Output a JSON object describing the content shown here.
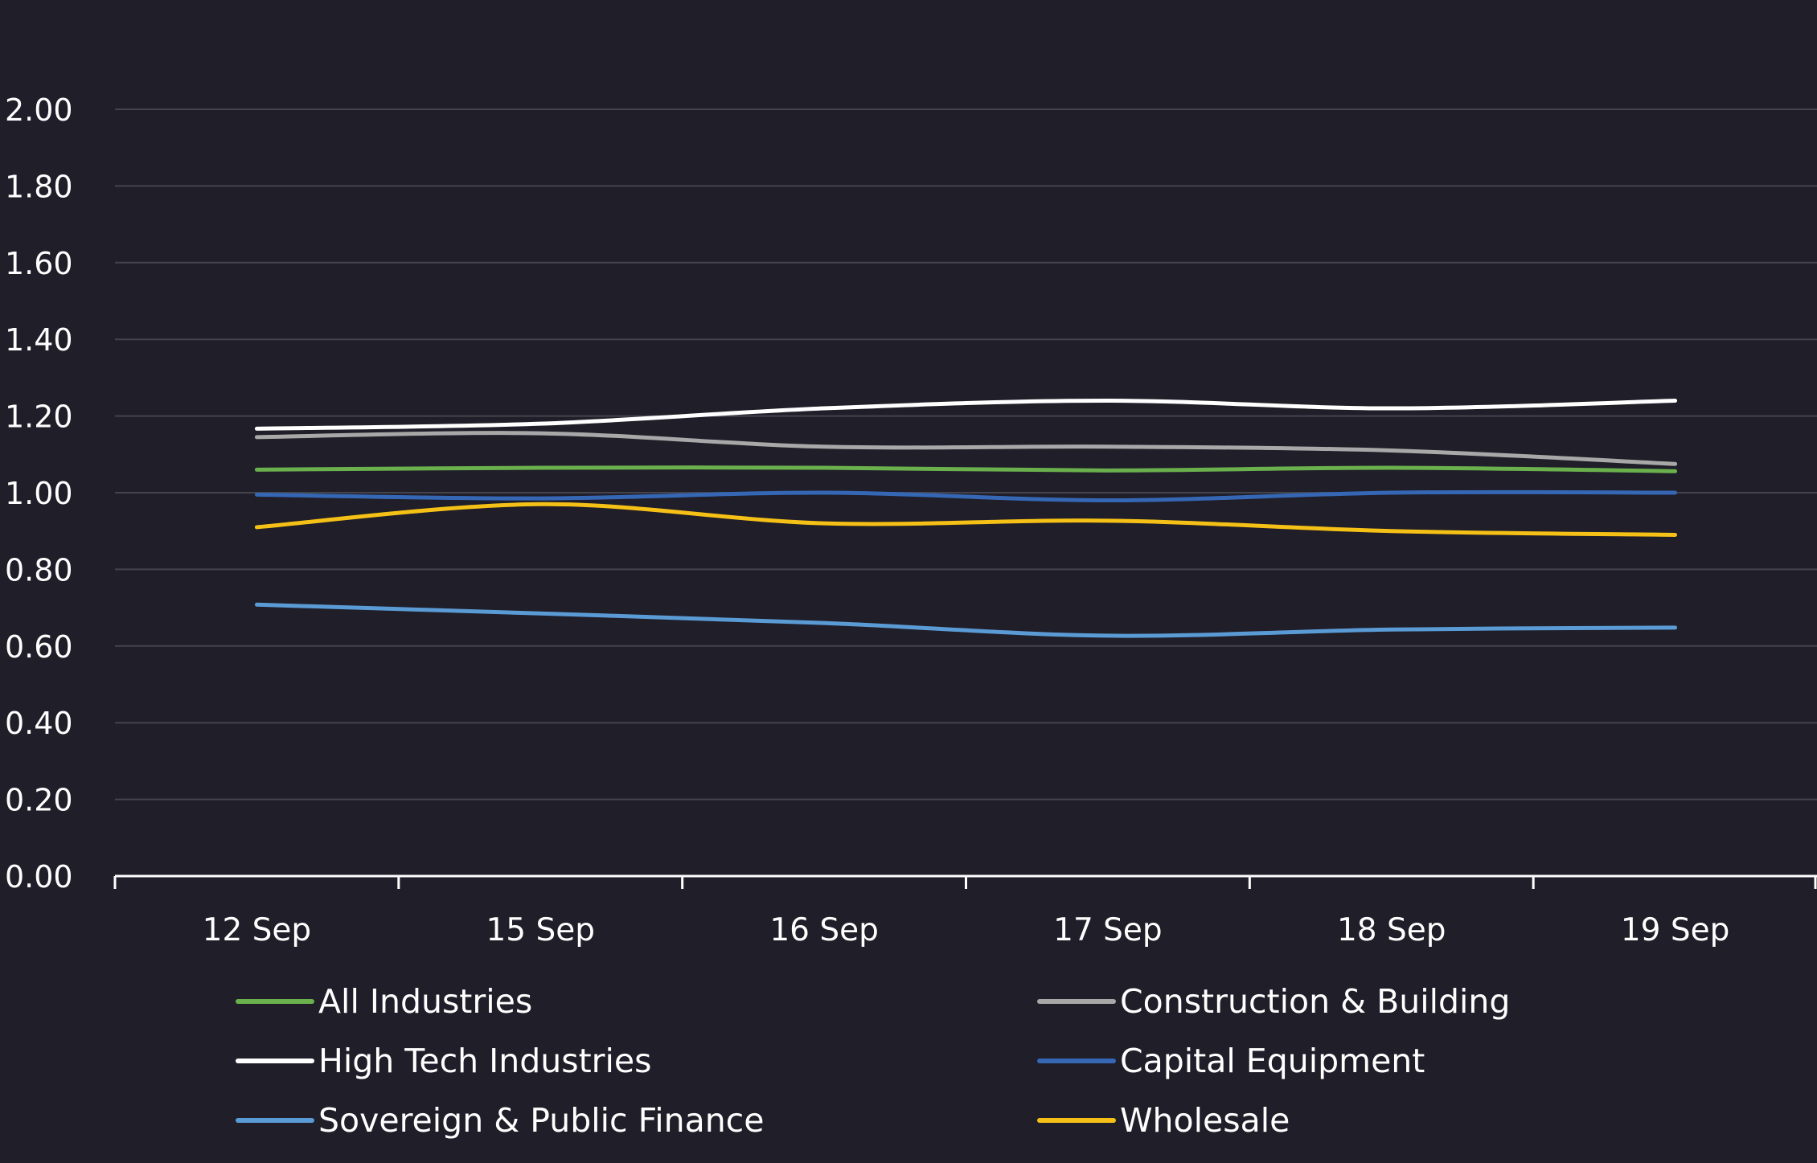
{
  "chart_data": {
    "type": "line",
    "title": "",
    "xlabel": "",
    "ylabel": "",
    "categories": [
      "12 Sep",
      "15 Sep",
      "16 Sep",
      "17 Sep",
      "18 Sep",
      "19 Sep"
    ],
    "ylim": [
      0,
      2
    ],
    "yticks": [
      "0.00",
      "0.20",
      "0.40",
      "0.60",
      "0.80",
      "1.00",
      "1.20",
      "1.40",
      "1.60",
      "1.80",
      "2.00"
    ],
    "grid": true,
    "legend_position": "bottom",
    "series": [
      {
        "name": "All Industries",
        "color": "#6ab04c",
        "values": [
          1.06,
          1.065,
          1.065,
          1.058,
          1.065,
          1.056
        ]
      },
      {
        "name": "Construction & Building",
        "color": "#a8a8a8",
        "values": [
          1.145,
          1.155,
          1.12,
          1.12,
          1.11,
          1.075
        ]
      },
      {
        "name": "High Tech Industries",
        "color": "#ffffff",
        "values": [
          1.167,
          1.18,
          1.22,
          1.24,
          1.22,
          1.24
        ]
      },
      {
        "name": "Capital Equipment",
        "color": "#3567b5",
        "values": [
          0.995,
          0.985,
          1.0,
          0.98,
          1.0,
          1.0
        ]
      },
      {
        "name": "Sovereign & Public Finance",
        "color": "#5b9bd5",
        "values": [
          0.708,
          0.685,
          0.66,
          0.627,
          0.643,
          0.648
        ]
      },
      {
        "name": "Wholesale",
        "color": "#f5c116",
        "values": [
          0.91,
          0.97,
          0.92,
          0.927,
          0.9,
          0.89
        ]
      }
    ]
  }
}
